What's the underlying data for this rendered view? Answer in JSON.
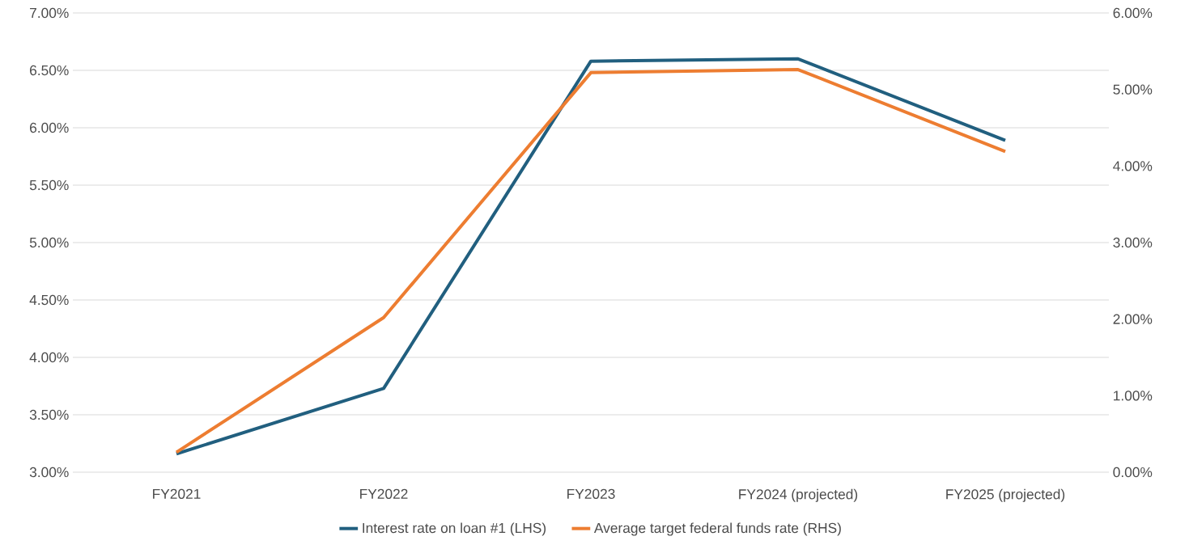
{
  "chart_data": {
    "type": "line",
    "categories": [
      "FY2021",
      "FY2022",
      "FY2023",
      "FY2024 (projected)",
      "FY2025 (projected)"
    ],
    "series": [
      {
        "name": "Interest rate on loan #1 (LHS)",
        "color": "#215f7f",
        "values": [
          3.16,
          3.73,
          6.58,
          6.6,
          5.89
        ]
      },
      {
        "name": "Average target federal funds rate (RHS)",
        "color": "#ed7d31",
        "axis": "y2",
        "values": [
          0.26,
          2.02,
          5.22,
          5.26,
          4.19
        ]
      }
    ],
    "ylim": [
      3,
      7
    ],
    "yticks": [
      {
        "value": 3,
        "label": "3.00%"
      },
      {
        "value": 3.5,
        "label": "3.50%"
      },
      {
        "value": 4,
        "label": "4.00%"
      },
      {
        "value": 4.5,
        "label": "4.50%"
      },
      {
        "value": 5,
        "label": "5.00%"
      },
      {
        "value": 5.5,
        "label": "5.50%"
      },
      {
        "value": 6,
        "label": "6.00%"
      },
      {
        "value": 6.5,
        "label": "6.50%"
      },
      {
        "value": 7,
        "label": "7.00%"
      }
    ],
    "y2lim": [
      0,
      6
    ],
    "y2ticks": [
      {
        "value": 0,
        "label": "0.00%"
      },
      {
        "value": 1,
        "label": "1.00%"
      },
      {
        "value": 2,
        "label": "2.00%"
      },
      {
        "value": 3,
        "label": "3.00%"
      },
      {
        "value": 4,
        "label": "4.00%"
      },
      {
        "value": 5,
        "label": "5.00%"
      },
      {
        "value": 6,
        "label": "6.00%"
      }
    ],
    "grid": "y",
    "legend": "bottom",
    "marker": "none",
    "line_style": "solid"
  }
}
